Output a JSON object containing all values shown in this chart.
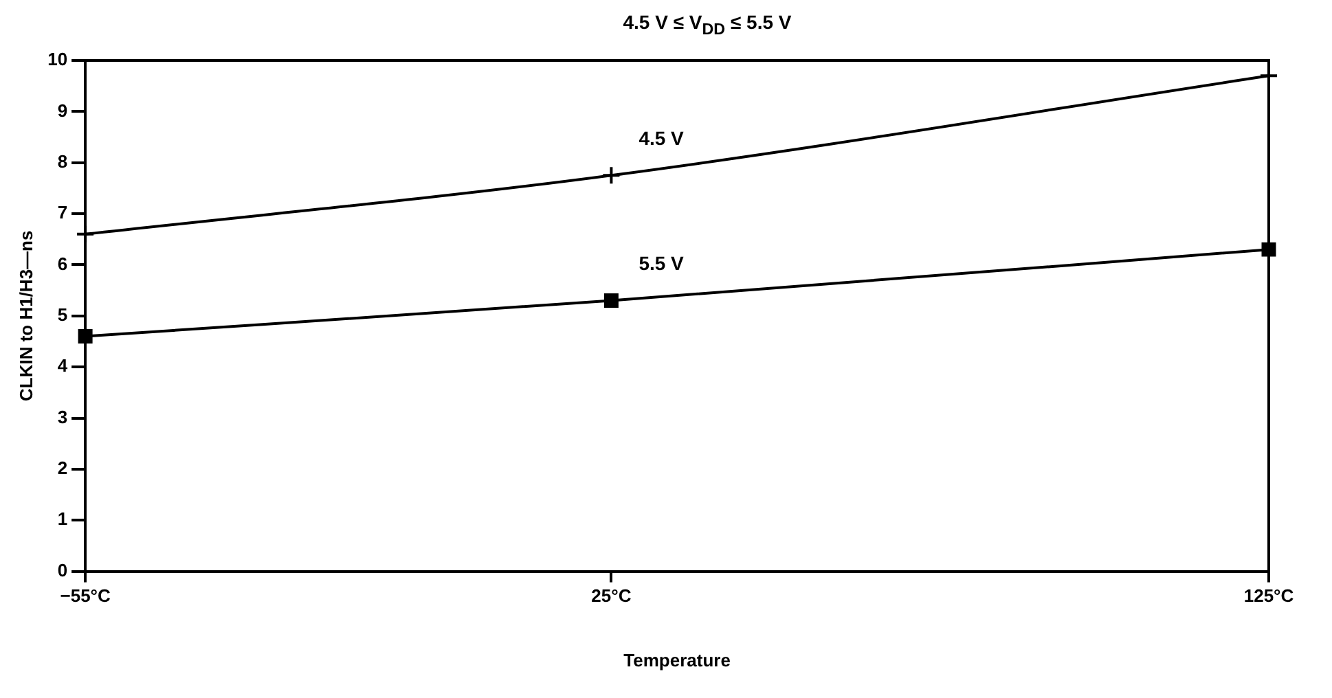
{
  "chart_data": {
    "type": "line",
    "subtitle": "4.5 V ≤ V$_{DD}$ ≤ 5.5 V",
    "xlabel": "Temperature",
    "ylabel": "CLKIN to H1/H3—ns",
    "x": [
      -55,
      25,
      125
    ],
    "series": [
      {
        "name": "4.5 V",
        "color": "#000000",
        "values": [
          6.6,
          7.75,
          9.7
        ],
        "marker": "cross"
      },
      {
        "name": "5.5 V",
        "color": "#000000",
        "values": [
          4.6,
          5.3,
          6.3
        ],
        "marker": "square"
      }
    ],
    "xlim": [
      -55,
      125
    ],
    "xticks": [
      {
        "value": -55,
        "label": "−55°C"
      },
      {
        "value": 25,
        "label": "25°C"
      },
      {
        "value": 125,
        "label": "125°C"
      }
    ],
    "ylim": [
      0,
      10
    ],
    "yticks": [
      0,
      1,
      2,
      3,
      4,
      5,
      6,
      7,
      8,
      9,
      10
    ],
    "grid": false,
    "legend": false,
    "line_style": "solid"
  }
}
